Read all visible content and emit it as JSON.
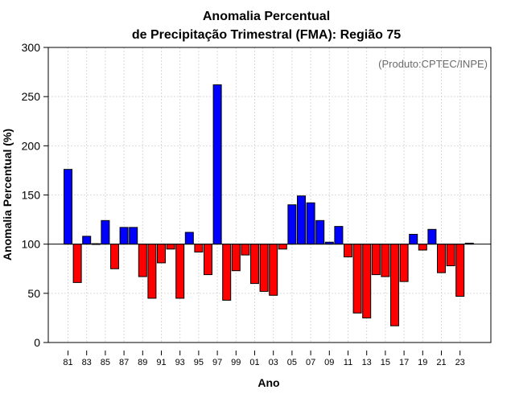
{
  "chart_data": {
    "type": "bar",
    "title": "Anomalia Percentual",
    "subtitle": "de Precipitação Trimestral (FMA): Região 75",
    "xlabel": "Ano",
    "ylabel": "Anomalia Percentual (%)",
    "credit": "(Produto:CPTEC/INPE)",
    "baseline": 100,
    "ylim": [
      0,
      300
    ],
    "yticks": [
      "0",
      "50",
      "100",
      "150",
      "200",
      "250",
      "300"
    ],
    "grid": true,
    "colors": {
      "above": "#0000ff",
      "below": "#ff0000",
      "outline": "#000000",
      "grid": "#d9d9d9"
    },
    "categories": [
      "81",
      "82",
      "83",
      "84",
      "85",
      "86",
      "87",
      "88",
      "89",
      "90",
      "91",
      "92",
      "93",
      "94",
      "95",
      "96",
      "97",
      "98",
      "99",
      "00",
      "01",
      "02",
      "03",
      "04",
      "05",
      "06",
      "07",
      "08",
      "09",
      "10",
      "11",
      "12",
      "13",
      "14",
      "15",
      "16",
      "17",
      "18",
      "19",
      "20",
      "21",
      "22",
      "23",
      "24"
    ],
    "xtick_labels": [
      "81",
      "",
      "83",
      "",
      "85",
      "",
      "87",
      "",
      "89",
      "",
      "91",
      "",
      "93",
      "",
      "95",
      "",
      "97",
      "",
      "99",
      "",
      "01",
      "",
      "03",
      "",
      "05",
      "",
      "07",
      "",
      "09",
      "",
      "11",
      "",
      "13",
      "",
      "15",
      "",
      "17",
      "",
      "19",
      "",
      "21",
      "",
      "23",
      ""
    ],
    "values": [
      176,
      61,
      108,
      100.5,
      124,
      75,
      117,
      117,
      67,
      45,
      81,
      95,
      45,
      112,
      92,
      69,
      262,
      43,
      73,
      89,
      60,
      52,
      48,
      95,
      140,
      149,
      142,
      124,
      102,
      118,
      87,
      30,
      25,
      69,
      67,
      17,
      62,
      110,
      94,
      115,
      71,
      78,
      47,
      101
    ]
  }
}
